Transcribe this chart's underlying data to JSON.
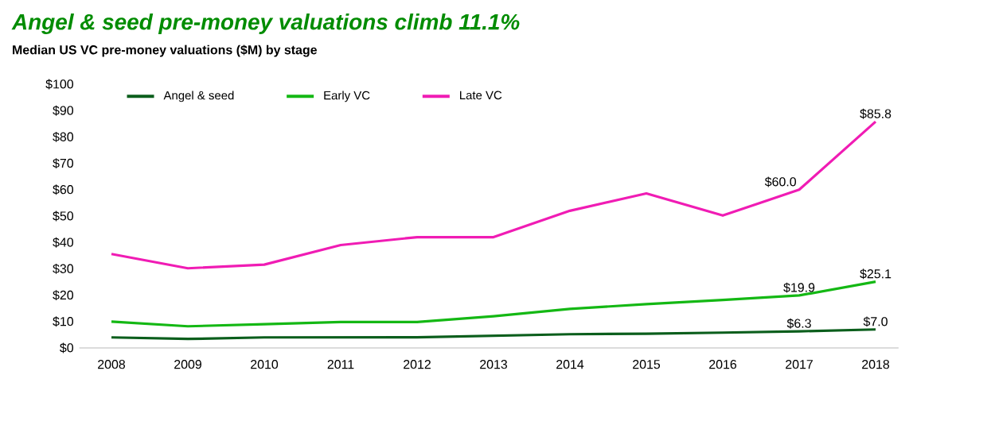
{
  "chart_data": {
    "type": "line",
    "title": "Angel & seed pre-money valuations climb 11.1%",
    "subtitle": "Median US VC pre-money valuations ($M) by stage",
    "categories": [
      "2008",
      "2009",
      "2010",
      "2011",
      "2012",
      "2013",
      "2014",
      "2015",
      "2016",
      "2017",
      "2018"
    ],
    "series": [
      {
        "name": "Angel & seed",
        "color": "#0b5e1c",
        "values": [
          4.0,
          3.4,
          4.0,
          4.0,
          4.0,
          4.6,
          5.2,
          5.4,
          5.8,
          6.3,
          7.0
        ],
        "value_labels": [
          null,
          null,
          null,
          null,
          null,
          null,
          null,
          null,
          null,
          "$6.3",
          "$7.0"
        ]
      },
      {
        "name": "Early VC",
        "color": "#14b814",
        "values": [
          10.0,
          8.2,
          9.0,
          9.8,
          9.8,
          12.0,
          14.8,
          16.6,
          18.2,
          19.9,
          25.1
        ],
        "value_labels": [
          null,
          null,
          null,
          null,
          null,
          null,
          null,
          null,
          null,
          "$19.9",
          "$25.1"
        ]
      },
      {
        "name": "Late VC",
        "color": "#f01cb4",
        "values": [
          35.6,
          30.2,
          31.6,
          39.0,
          42.0,
          42.0,
          52.0,
          58.6,
          50.2,
          60.0,
          85.8
        ],
        "value_labels": [
          null,
          null,
          null,
          null,
          null,
          null,
          null,
          null,
          null,
          "$60.0",
          "$85.8"
        ]
      }
    ],
    "ylim": [
      0,
      100
    ],
    "yticks": [
      {
        "value": 0,
        "label": "$0"
      },
      {
        "value": 10,
        "label": "$10"
      },
      {
        "value": 20,
        "label": "$20"
      },
      {
        "value": 30,
        "label": "$30"
      },
      {
        "value": 40,
        "label": "$40"
      },
      {
        "value": 50,
        "label": "$50"
      },
      {
        "value": 60,
        "label": "$60"
      },
      {
        "value": 70,
        "label": "$70"
      },
      {
        "value": 80,
        "label": "$80"
      },
      {
        "value": 90,
        "label": "$90"
      },
      {
        "value": 100,
        "label": "$100"
      }
    ],
    "legend": "top",
    "grid": false,
    "marker": "none",
    "line_style": "solid"
  }
}
